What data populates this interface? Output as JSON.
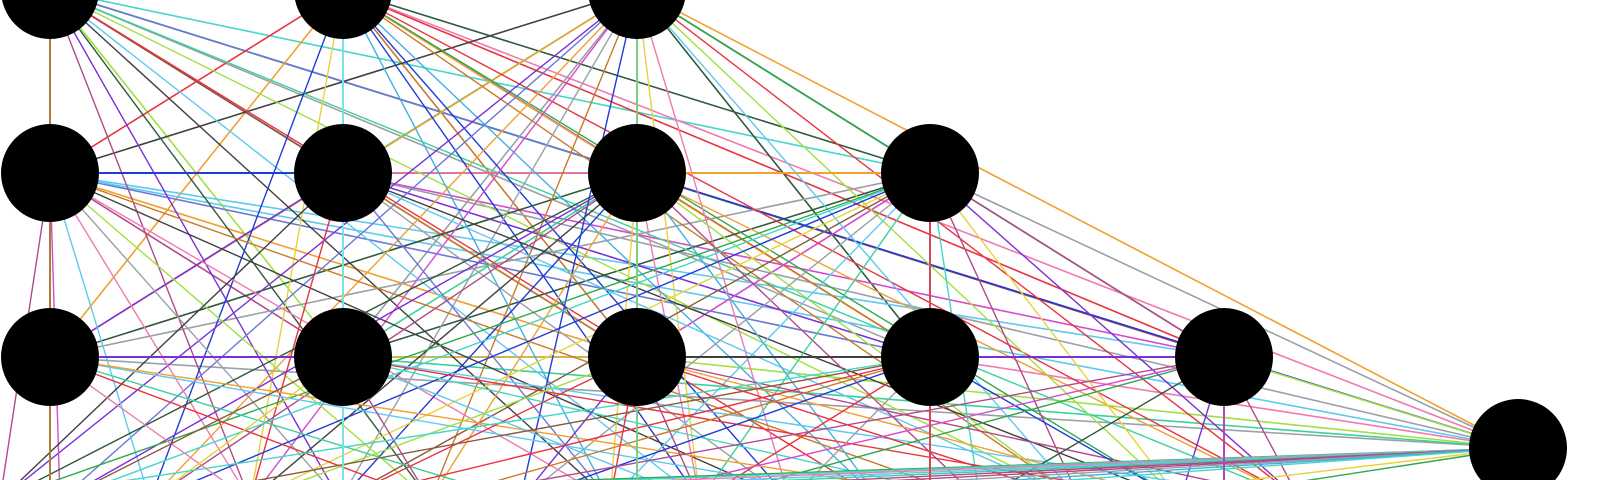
{
  "graph": {
    "background": "#ffffff",
    "node_color": "#000000",
    "edge_palette": [
      "#1f3cd6",
      "#e8343f",
      "#3ad19a",
      "#f0a030",
      "#7a2fd8",
      "#2fa84a",
      "#b04a8a",
      "#5ec9f0",
      "#9aa0a6",
      "#c97a2a",
      "#44d6c8",
      "#8a5a3c",
      "#d64ad0",
      "#2f5a3a",
      "#e8d23a",
      "#6a78d8",
      "#40b0e0",
      "#a0e040",
      "#f07ab0",
      "#404040"
    ],
    "nodes": [
      {
        "id": "n0"
      },
      {
        "id": "n1"
      },
      {
        "id": "n2"
      },
      {
        "id": "n3"
      },
      {
        "id": "n4"
      },
      {
        "id": "n5"
      },
      {
        "id": "n6"
      },
      {
        "id": "n7"
      },
      {
        "id": "n8"
      },
      {
        "id": "n9"
      },
      {
        "id": "n10"
      },
      {
        "id": "n11"
      },
      {
        "id": "n12"
      }
    ],
    "bottom_anchors": [
      {
        "id": "b0"
      },
      {
        "id": "b1"
      },
      {
        "id": "b2"
      },
      {
        "id": "b3"
      },
      {
        "id": "b4"
      },
      {
        "id": "b5"
      },
      {
        "id": "b6"
      },
      {
        "id": "b7"
      },
      {
        "id": "b8"
      },
      {
        "id": "b9"
      },
      {
        "id": "b10"
      },
      {
        "id": "b11"
      },
      {
        "id": "b12"
      },
      {
        "id": "b13"
      },
      {
        "id": "b14"
      }
    ],
    "vertical_edge_colors": [
      "#b07a3a",
      "#7de0e8",
      "#7ad080",
      "#d04a5a",
      "#b04ab0"
    ]
  }
}
